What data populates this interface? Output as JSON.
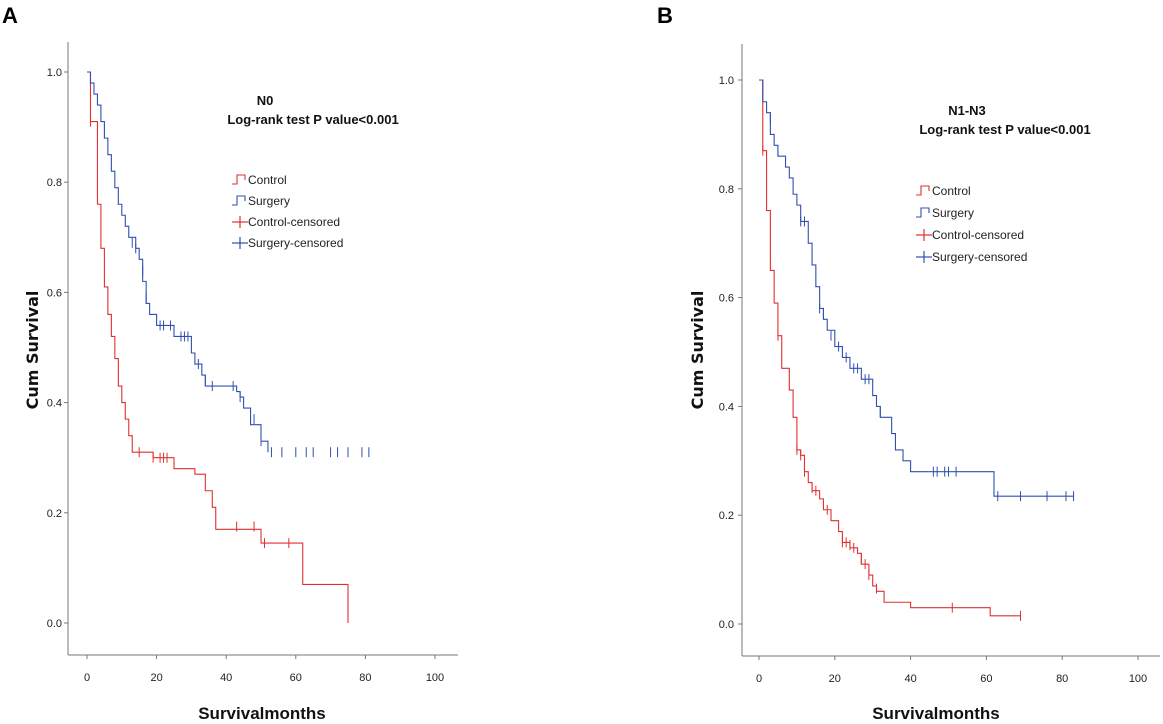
{
  "chart_data": [
    {
      "panel": "A",
      "type": "line",
      "subtype": "kaplan-meier",
      "title": "N0",
      "annotation": "Log-rank test P value<0.001",
      "xlabel": "Survivalmonths",
      "ylabel": "Cum Survival",
      "xlim": [
        0,
        100
      ],
      "ylim": [
        0,
        1
      ],
      "xticks": [
        "0",
        "20",
        "40",
        "60",
        "80",
        "100"
      ],
      "yticks": [
        "0.0",
        "0.2",
        "0.4",
        "0.6",
        "0.8",
        "1.0"
      ],
      "legend": [
        "Control",
        "Surgery",
        "Control-censored",
        "Surgery-censored"
      ],
      "series": [
        {
          "name": "Control",
          "color": "#e03030",
          "steps": [
            [
              0,
              1.0
            ],
            [
              1,
              0.91
            ],
            [
              3,
              0.76
            ],
            [
              4,
              0.68
            ],
            [
              5,
              0.61
            ],
            [
              6,
              0.56
            ],
            [
              7,
              0.52
            ],
            [
              8,
              0.48
            ],
            [
              9,
              0.43
            ],
            [
              10,
              0.4
            ],
            [
              11,
              0.37
            ],
            [
              12,
              0.34
            ],
            [
              13,
              0.31
            ],
            [
              19,
              0.3
            ],
            [
              25,
              0.28
            ],
            [
              31,
              0.27
            ],
            [
              34,
              0.24
            ],
            [
              36,
              0.21
            ],
            [
              37,
              0.17
            ],
            [
              50,
              0.145
            ],
            [
              62,
              0.07
            ],
            [
              75,
              0.0
            ]
          ],
          "censored": [
            [
              1,
              0.91
            ],
            [
              15,
              0.31
            ],
            [
              19,
              0.3
            ],
            [
              21,
              0.3
            ],
            [
              22,
              0.3
            ],
            [
              23,
              0.3
            ],
            [
              43,
              0.175
            ],
            [
              48,
              0.175
            ],
            [
              51,
              0.145
            ],
            [
              58,
              0.145
            ]
          ]
        },
        {
          "name": "Surgery",
          "color": "#3050b0",
          "steps": [
            [
              0,
              1.0
            ],
            [
              1,
              0.98
            ],
            [
              2,
              0.96
            ],
            [
              3,
              0.94
            ],
            [
              4,
              0.91
            ],
            [
              5,
              0.88
            ],
            [
              6,
              0.85
            ],
            [
              7,
              0.82
            ],
            [
              8,
              0.79
            ],
            [
              9,
              0.76
            ],
            [
              10,
              0.74
            ],
            [
              11,
              0.72
            ],
            [
              12,
              0.7
            ],
            [
              14,
              0.68
            ],
            [
              15,
              0.66
            ],
            [
              16,
              0.62
            ],
            [
              17,
              0.58
            ],
            [
              18,
              0.56
            ],
            [
              20,
              0.54
            ],
            [
              25,
              0.52
            ],
            [
              30,
              0.49
            ],
            [
              31,
              0.47
            ],
            [
              33,
              0.45
            ],
            [
              34,
              0.43
            ],
            [
              43,
              0.42
            ],
            [
              44,
              0.41
            ],
            [
              45,
              0.39
            ],
            [
              47,
              0.36
            ],
            [
              50,
              0.33
            ],
            [
              52,
              0.31
            ]
          ],
          "censored": [
            [
              13,
              0.69
            ],
            [
              14,
              0.68
            ],
            [
              16,
              0.64
            ],
            [
              17,
              0.59
            ],
            [
              21,
              0.54
            ],
            [
              22,
              0.54
            ],
            [
              24,
              0.54
            ],
            [
              27,
              0.52
            ],
            [
              28,
              0.52
            ],
            [
              29,
              0.52
            ],
            [
              32,
              0.47
            ],
            [
              34,
              0.44
            ],
            [
              36,
              0.43
            ],
            [
              42,
              0.43
            ],
            [
              44,
              0.41
            ],
            [
              48,
              0.37
            ],
            [
              50,
              0.33
            ],
            [
              53,
              0.31
            ],
            [
              56,
              0.31
            ],
            [
              60,
              0.31
            ],
            [
              63,
              0.31
            ],
            [
              65,
              0.31
            ],
            [
              70,
              0.31
            ],
            [
              72,
              0.31
            ],
            [
              75,
              0.31
            ],
            [
              79,
              0.31
            ],
            [
              81,
              0.31
            ]
          ]
        }
      ]
    },
    {
      "panel": "B",
      "type": "line",
      "subtype": "kaplan-meier",
      "title": "N1-N3",
      "annotation": "Log-rank test P value<0.001",
      "xlabel": "Survivalmonths",
      "ylabel": "Cum Survival",
      "xlim": [
        0,
        100
      ],
      "ylim": [
        0,
        1
      ],
      "xticks": [
        "0",
        "20",
        "40",
        "60",
        "80",
        "100"
      ],
      "yticks": [
        "0.0",
        "0.2",
        "0.4",
        "0.6",
        "0.8",
        "1.0"
      ],
      "legend": [
        "Control",
        "Surgery",
        "Control-censored",
        "Surgery-censored"
      ],
      "series": [
        {
          "name": "Control",
          "color": "#e03030",
          "steps": [
            [
              0,
              1.0
            ],
            [
              1,
              0.87
            ],
            [
              2,
              0.76
            ],
            [
              3,
              0.65
            ],
            [
              4,
              0.59
            ],
            [
              5,
              0.53
            ],
            [
              6,
              0.47
            ],
            [
              8,
              0.43
            ],
            [
              9,
              0.38
            ],
            [
              10,
              0.32
            ],
            [
              11,
              0.31
            ],
            [
              12,
              0.28
            ],
            [
              13,
              0.26
            ],
            [
              14,
              0.245
            ],
            [
              16,
              0.23
            ],
            [
              17,
              0.21
            ],
            [
              19,
              0.19
            ],
            [
              21,
              0.17
            ],
            [
              22,
              0.15
            ],
            [
              24,
              0.14
            ],
            [
              26,
              0.13
            ],
            [
              27,
              0.11
            ],
            [
              29,
              0.09
            ],
            [
              30,
              0.07
            ],
            [
              31,
              0.06
            ],
            [
              33,
              0.04
            ],
            [
              40,
              0.03
            ],
            [
              51,
              0.03
            ],
            [
              61,
              0.015
            ],
            [
              69,
              0.015
            ]
          ],
          "censored": [
            [
              1,
              0.87
            ],
            [
              5,
              0.53
            ],
            [
              10,
              0.32
            ],
            [
              11,
              0.31
            ],
            [
              12,
              0.28
            ],
            [
              14,
              0.25
            ],
            [
              15,
              0.245
            ],
            [
              18,
              0.21
            ],
            [
              22,
              0.15
            ],
            [
              23,
              0.15
            ],
            [
              24,
              0.145
            ],
            [
              25,
              0.14
            ],
            [
              27,
              0.12
            ],
            [
              28,
              0.11
            ],
            [
              29,
              0.09
            ],
            [
              31,
              0.065
            ],
            [
              51,
              0.03
            ],
            [
              69,
              0.015
            ]
          ]
        },
        {
          "name": "Surgery",
          "color": "#3050b0",
          "steps": [
            [
              0,
              1.0
            ],
            [
              1,
              0.96
            ],
            [
              2,
              0.94
            ],
            [
              3,
              0.9
            ],
            [
              4,
              0.88
            ],
            [
              5,
              0.86
            ],
            [
              7,
              0.84
            ],
            [
              8,
              0.82
            ],
            [
              9,
              0.79
            ],
            [
              10,
              0.77
            ],
            [
              11,
              0.74
            ],
            [
              13,
              0.7
            ],
            [
              14,
              0.66
            ],
            [
              15,
              0.62
            ],
            [
              16,
              0.58
            ],
            [
              17,
              0.56
            ],
            [
              18,
              0.54
            ],
            [
              20,
              0.51
            ],
            [
              22,
              0.49
            ],
            [
              24,
              0.47
            ],
            [
              27,
              0.45
            ],
            [
              30,
              0.42
            ],
            [
              31,
              0.4
            ],
            [
              32,
              0.38
            ],
            [
              35,
              0.35
            ],
            [
              36,
              0.32
            ],
            [
              38,
              0.3
            ],
            [
              40,
              0.28
            ],
            [
              62,
              0.235
            ],
            [
              83,
              0.235
            ]
          ],
          "censored": [
            [
              3,
              0.93
            ],
            [
              5,
              0.87
            ],
            [
              11,
              0.74
            ],
            [
              12,
              0.74
            ],
            [
              16,
              0.58
            ],
            [
              17,
              0.57
            ],
            [
              19,
              0.53
            ],
            [
              21,
              0.51
            ],
            [
              23,
              0.49
            ],
            [
              25,
              0.47
            ],
            [
              26,
              0.47
            ],
            [
              28,
              0.45
            ],
            [
              29,
              0.45
            ],
            [
              32,
              0.39
            ],
            [
              46,
              0.28
            ],
            [
              47,
              0.28
            ],
            [
              49,
              0.28
            ],
            [
              50,
              0.28
            ],
            [
              52,
              0.28
            ],
            [
              63,
              0.235
            ],
            [
              69,
              0.235
            ],
            [
              76,
              0.235
            ],
            [
              81,
              0.235
            ],
            [
              83,
              0.235
            ]
          ]
        }
      ]
    }
  ]
}
